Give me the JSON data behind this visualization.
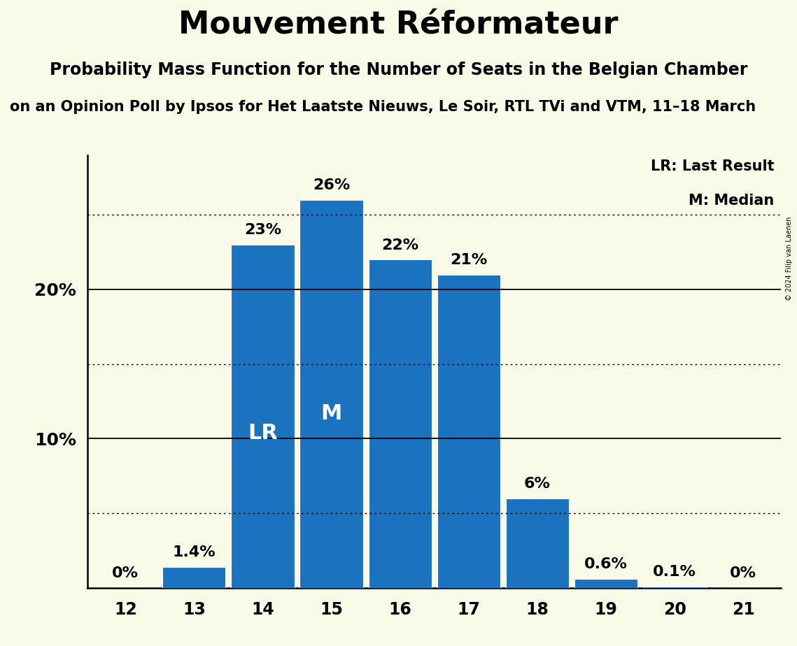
{
  "title": "Mouvement Réformateur",
  "subtitle": "Probability Mass Function for the Number of Seats in the Belgian Chamber",
  "subsubtitle": "on an Opinion Poll by Ipsos for Het Laatste Nieuws, Le Soir, RTL TVi and VTM, 11–18 March",
  "copyright": "© 2024 Filip van Laenen",
  "seats": [
    12,
    13,
    14,
    15,
    16,
    17,
    18,
    19,
    20,
    21
  ],
  "probabilities": [
    0.0,
    1.4,
    23.0,
    26.0,
    22.0,
    21.0,
    6.0,
    0.6,
    0.1,
    0.0
  ],
  "bar_color": "#1B72BE",
  "background_color": "#FAFAE8",
  "lr_seat": 14,
  "median_seat": 15,
  "ylim": [
    0,
    29
  ],
  "solid_grid_lines": [
    10,
    20
  ],
  "dotted_grid_lines": [
    5,
    15,
    25
  ],
  "legend_lr": "LR: Last Result",
  "legend_m": "M: Median",
  "bar_labels": [
    "0%",
    "1.4%",
    "23%",
    "26%",
    "22%",
    "21%",
    "6%",
    "0.6%",
    "0.1%",
    "0%"
  ],
  "lr_label": "LR",
  "m_label": "M",
  "title_fontsize": 32,
  "subtitle_fontsize": 17,
  "subsubtitle_fontsize": 15,
  "bar_label_fontsize": 16,
  "axis_tick_fontsize": 17,
  "ytick_fontsize": 18,
  "legend_fontsize": 15,
  "lr_m_fontsize": 22
}
